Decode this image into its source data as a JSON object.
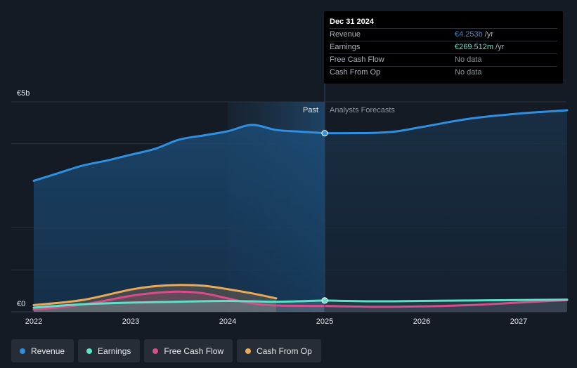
{
  "chart_data": {
    "type": "area",
    "currency_symbol": "€",
    "ylabel_top": "€5b",
    "ylabel_bottom": "€0",
    "ylim": [
      0,
      5.0
    ],
    "xlim": [
      2021.8,
      2027.5
    ],
    "x_ticks": [
      {
        "value": 2022,
        "label": "2022"
      },
      {
        "value": 2023,
        "label": "2023"
      },
      {
        "value": 2024,
        "label": "2024"
      },
      {
        "value": 2025,
        "label": "2025"
      },
      {
        "value": 2026,
        "label": "2026"
      },
      {
        "value": 2027,
        "label": "2027"
      }
    ],
    "gridlines": [
      1.0,
      2.0,
      4.0,
      5.0
    ],
    "past_label": "Past",
    "forecast_label": "Analysts Forecasts",
    "past_start": 2024.0,
    "divider_x": 2025.0,
    "series": [
      {
        "name": "Revenue",
        "color": "#2f8fe0",
        "area": true,
        "points": [
          [
            2022.0,
            3.12
          ],
          [
            2022.25,
            3.3
          ],
          [
            2022.5,
            3.48
          ],
          [
            2022.75,
            3.6
          ],
          [
            2023.0,
            3.74
          ],
          [
            2023.25,
            3.88
          ],
          [
            2023.5,
            4.1
          ],
          [
            2023.75,
            4.2
          ],
          [
            2024.0,
            4.3
          ],
          [
            2024.25,
            4.45
          ],
          [
            2024.5,
            4.33
          ],
          [
            2024.75,
            4.29
          ],
          [
            2025.0,
            4.253
          ]
        ],
        "forecast_points": [
          [
            2025.0,
            4.253
          ],
          [
            2025.5,
            4.26
          ],
          [
            2025.75,
            4.3
          ],
          [
            2026.0,
            4.4
          ],
          [
            2026.5,
            4.6
          ],
          [
            2027.0,
            4.72
          ],
          [
            2027.5,
            4.8
          ]
        ]
      },
      {
        "name": "Earnings",
        "color": "#5fe0c8",
        "area": true,
        "points": [
          [
            2022.0,
            0.1
          ],
          [
            2022.5,
            0.18
          ],
          [
            2023.0,
            0.22
          ],
          [
            2023.5,
            0.24
          ],
          [
            2024.0,
            0.26
          ],
          [
            2024.5,
            0.24
          ],
          [
            2025.0,
            0.27
          ]
        ],
        "forecast_points": [
          [
            2025.0,
            0.27
          ],
          [
            2025.5,
            0.25
          ],
          [
            2026.0,
            0.26
          ],
          [
            2026.5,
            0.27
          ],
          [
            2027.0,
            0.28
          ],
          [
            2027.5,
            0.29
          ]
        ]
      },
      {
        "name": "Free Cash Flow",
        "color": "#d64d8a",
        "area": true,
        "points": [
          [
            2022.0,
            0.05
          ],
          [
            2022.5,
            0.17
          ],
          [
            2023.0,
            0.38
          ],
          [
            2023.25,
            0.45
          ],
          [
            2023.5,
            0.48
          ],
          [
            2023.75,
            0.44
          ],
          [
            2024.0,
            0.32
          ],
          [
            2024.25,
            0.2
          ],
          [
            2024.5,
            0.15
          ],
          [
            2025.0,
            0.14
          ]
        ],
        "forecast_points": [
          [
            2025.0,
            0.14
          ],
          [
            2025.5,
            0.12
          ],
          [
            2026.0,
            0.13
          ],
          [
            2026.5,
            0.16
          ],
          [
            2027.0,
            0.22
          ],
          [
            2027.5,
            0.28
          ]
        ]
      },
      {
        "name": "Cash From Op",
        "color": "#e8a95a",
        "area": true,
        "points": [
          [
            2022.0,
            0.16
          ],
          [
            2022.5,
            0.28
          ],
          [
            2023.0,
            0.53
          ],
          [
            2023.25,
            0.61
          ],
          [
            2023.5,
            0.64
          ],
          [
            2023.75,
            0.62
          ],
          [
            2024.0,
            0.54
          ],
          [
            2024.25,
            0.44
          ],
          [
            2024.5,
            0.32
          ]
        ],
        "forecast_points": []
      }
    ],
    "tooltip": {
      "date": "Dec 31 2024",
      "rows": [
        {
          "label": "Revenue",
          "value": "€4.253b",
          "unit": "/yr",
          "color": "#2f8fe0"
        },
        {
          "label": "Earnings",
          "value": "€269.512m",
          "unit": "/yr",
          "color": "#5fe0c8"
        },
        {
          "label": "Free Cash Flow",
          "value": "No data",
          "unit": "",
          "color": "#8a929b"
        },
        {
          "label": "Cash From Op",
          "value": "No data",
          "unit": "",
          "color": "#8a929b"
        }
      ]
    },
    "legend": [
      {
        "name": "Revenue",
        "color": "#2f8fe0"
      },
      {
        "name": "Earnings",
        "color": "#5fe0c8"
      },
      {
        "name": "Free Cash Flow",
        "color": "#d64d8a"
      },
      {
        "name": "Cash From Op",
        "color": "#e8a95a"
      }
    ]
  }
}
